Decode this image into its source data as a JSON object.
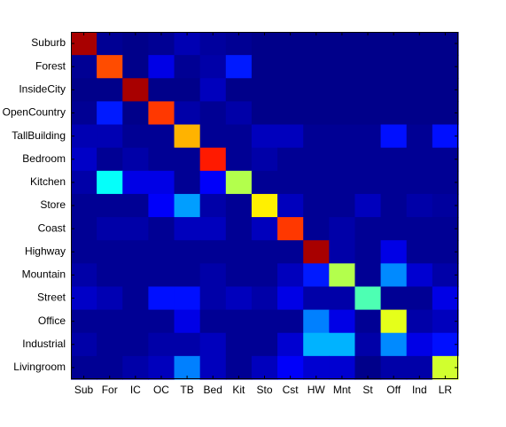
{
  "chart_data": {
    "type": "heatmap",
    "title": "",
    "xlabel": "",
    "ylabel": "",
    "colormap": "jet",
    "value_range": [
      0,
      1
    ],
    "grid": false,
    "colorbar": false,
    "row_labels": [
      "Suburb",
      "Forest",
      "InsideCity",
      "OpenCountry",
      "TallBuilding",
      "Bedroom",
      "Kitchen",
      "Store",
      "Coast",
      "Highway",
      "Mountain",
      "Street",
      "Office",
      "Industrial",
      "Livingroom"
    ],
    "col_labels": [
      "Sub",
      "For",
      "IC",
      "OC",
      "TB",
      "Bed",
      "Kit",
      "Sto",
      "Cst",
      "HW",
      "Mnt",
      "St",
      "Off",
      "Ind",
      "LR"
    ],
    "values": [
      [
        0.96,
        0.02,
        0.01,
        0.02,
        0.05,
        0.03,
        0.02,
        0.01,
        0.01,
        0.01,
        0.01,
        0.01,
        0.01,
        0.01,
        0.01
      ],
      [
        0.02,
        0.8,
        0.01,
        0.1,
        0.02,
        0.04,
        0.15,
        0.01,
        0.01,
        0.01,
        0.01,
        0.01,
        0.01,
        0.01,
        0.01
      ],
      [
        0.01,
        0.01,
        0.96,
        0.01,
        0.01,
        0.06,
        0.01,
        0.01,
        0.01,
        0.01,
        0.01,
        0.01,
        0.01,
        0.01,
        0.01
      ],
      [
        0.02,
        0.15,
        0.01,
        0.82,
        0.04,
        0.02,
        0.04,
        0.01,
        0.01,
        0.01,
        0.01,
        0.01,
        0.01,
        0.01,
        0.01
      ],
      [
        0.05,
        0.05,
        0.02,
        0.02,
        0.7,
        0.02,
        0.02,
        0.06,
        0.06,
        0.02,
        0.02,
        0.02,
        0.14,
        0.02,
        0.14
      ],
      [
        0.07,
        0.02,
        0.04,
        0.02,
        0.02,
        0.85,
        0.02,
        0.04,
        0.02,
        0.02,
        0.02,
        0.02,
        0.02,
        0.02,
        0.02
      ],
      [
        0.04,
        0.38,
        0.1,
        0.1,
        0.02,
        0.12,
        0.55,
        0.02,
        0.02,
        0.02,
        0.02,
        0.02,
        0.02,
        0.02,
        0.02
      ],
      [
        0.02,
        0.02,
        0.02,
        0.12,
        0.28,
        0.04,
        0.02,
        0.64,
        0.06,
        0.02,
        0.02,
        0.06,
        0.02,
        0.04,
        0.03
      ],
      [
        0.02,
        0.04,
        0.04,
        0.02,
        0.06,
        0.06,
        0.02,
        0.06,
        0.82,
        0.02,
        0.04,
        0.02,
        0.02,
        0.02,
        0.02
      ],
      [
        0.02,
        0.02,
        0.02,
        0.02,
        0.02,
        0.02,
        0.02,
        0.02,
        0.02,
        0.96,
        0.04,
        0.02,
        0.1,
        0.02,
        0.02
      ],
      [
        0.04,
        0.02,
        0.02,
        0.02,
        0.02,
        0.04,
        0.02,
        0.02,
        0.06,
        0.15,
        0.55,
        0.02,
        0.26,
        0.08,
        0.04
      ],
      [
        0.07,
        0.05,
        0.02,
        0.14,
        0.14,
        0.04,
        0.06,
        0.04,
        0.1,
        0.04,
        0.04,
        0.45,
        0.02,
        0.02,
        0.1
      ],
      [
        0.02,
        0.02,
        0.02,
        0.02,
        0.1,
        0.02,
        0.02,
        0.02,
        0.02,
        0.25,
        0.1,
        0.02,
        0.6,
        0.04,
        0.06
      ],
      [
        0.04,
        0.02,
        0.02,
        0.04,
        0.04,
        0.06,
        0.02,
        0.02,
        0.08,
        0.3,
        0.3,
        0.04,
        0.26,
        0.1,
        0.14
      ],
      [
        0.02,
        0.02,
        0.04,
        0.06,
        0.25,
        0.06,
        0.02,
        0.06,
        0.12,
        0.08,
        0.08,
        0.01,
        0.04,
        0.04,
        0.58
      ]
    ]
  }
}
